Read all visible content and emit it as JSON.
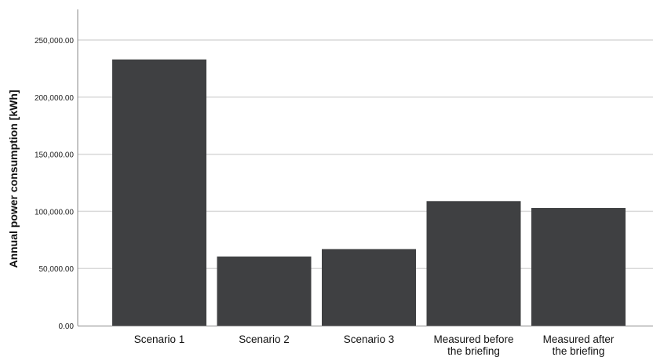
{
  "chart_data": {
    "type": "bar",
    "categories": [
      [
        "Scenario 1"
      ],
      [
        "Scenario 2"
      ],
      [
        "Scenario 3"
      ],
      [
        "Measured before",
        "the briefing"
      ],
      [
        "Measured after",
        "the briefing"
      ]
    ],
    "values": [
      233000,
      60500,
      67000,
      109000,
      103000
    ],
    "ylabel": "Annual power consumption [kWh]",
    "xlabel": "",
    "ylim": [
      0,
      250000
    ],
    "yticks": [
      0,
      50000,
      100000,
      150000,
      200000,
      250000
    ],
    "ytick_labels": [
      "0.00",
      "50,000.00",
      "100,000.00",
      "150,000.00",
      "200,000.00",
      "250,000.00"
    ],
    "grid": true,
    "legend": "none",
    "bar_color": "#3f4042",
    "grid_color": "#d9d9d9",
    "axis_color": "#888888"
  }
}
